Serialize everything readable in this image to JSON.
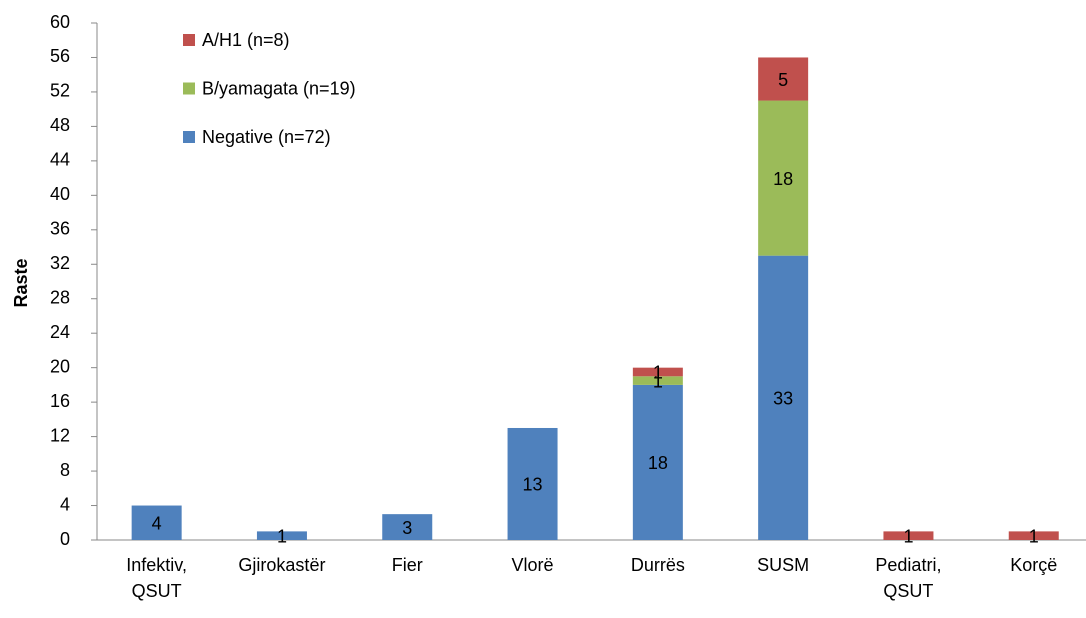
{
  "chart_data": {
    "type": "stacked_bar",
    "y_label": "Raste",
    "categories": [
      "Infektiv, QSUT",
      "Gjirokastër",
      "Fier",
      "Vlorë",
      "Durrës",
      "SUSM",
      "Pediatri, QSUT",
      "Korçë"
    ],
    "series": [
      {
        "name": "Negative (n=72)",
        "color": "#4f81bd",
        "values": [
          4,
          1,
          3,
          13,
          18,
          33,
          0,
          0
        ]
      },
      {
        "name": "B/yamagata (n=19)",
        "color": "#9bbb59",
        "values": [
          0,
          0,
          0,
          0,
          1,
          18,
          0,
          0
        ]
      },
      {
        "name": "A/H1 (n=8)",
        "color": "#c0504d",
        "values": [
          0,
          0,
          0,
          0,
          1,
          5,
          1,
          1
        ]
      }
    ],
    "ylim": [
      0,
      60
    ],
    "yticks": [
      0,
      4,
      8,
      12,
      16,
      20,
      24,
      28,
      32,
      36,
      40,
      44,
      48,
      52,
      56,
      60
    ],
    "legend": "top-left",
    "grid": false
  }
}
